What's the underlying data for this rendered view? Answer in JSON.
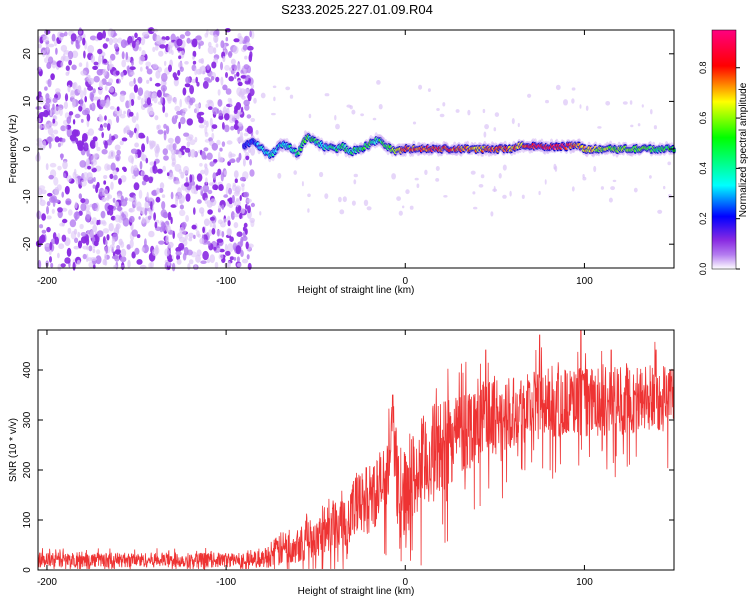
{
  "page": {
    "title": "S233.2025.227.01.09.R04"
  },
  "chart_data": [
    {
      "type": "heatmap",
      "xlabel": "Height of straight line (km)",
      "ylabel": "Frequency (Hz)",
      "xlim": [
        -205,
        150
      ],
      "ylim": [
        -25,
        25
      ],
      "xticks": [
        -200,
        -100,
        0,
        100
      ],
      "xtick_labels": [
        "-200",
        "-100",
        "0",
        "100"
      ],
      "yticks": [
        -20,
        -10,
        0,
        10,
        20
      ],
      "ytick_labels": [
        "-20",
        "-10",
        "0",
        "10",
        "20"
      ],
      "colorbar": {
        "label": "Normalized spectral amplitude",
        "range": [
          0,
          0.95
        ],
        "ticks": [
          0.0,
          0.2,
          0.4,
          0.6,
          0.8
        ],
        "tick_labels": [
          "0.0",
          "0.2",
          "0.4",
          "0.6",
          "0.8"
        ],
        "colormap": [
          "#ffffff",
          "#8a2be2",
          "#0000ff",
          "#00ffff",
          "#00ff00",
          "#ffff00",
          "#ff0000",
          "#ff0080"
        ]
      },
      "noise_region": {
        "x_range": [
          -205,
          -85
        ],
        "freq_range": [
          -25,
          25
        ],
        "amplitude_range": [
          0.0,
          0.08
        ]
      },
      "signal_trace": {
        "x": [
          -90,
          -85,
          -80,
          -75,
          -70,
          -65,
          -60,
          -55,
          -50,
          -45,
          -40,
          -35,
          -30,
          -25,
          -20,
          -15,
          -10,
          -5,
          0,
          10,
          20,
          30,
          40,
          50,
          60,
          65,
          70,
          80,
          90,
          95,
          100,
          110,
          120,
          130,
          140,
          150
        ],
        "freq": [
          0.5,
          1.5,
          0.0,
          -1.5,
          1.0,
          0.5,
          -1.0,
          2.5,
          1.5,
          0.5,
          0.0,
          0.5,
          -0.5,
          0.0,
          1.0,
          2.0,
          0.5,
          -0.5,
          0.0,
          0.0,
          0.0,
          0.0,
          0.0,
          0.0,
          0.0,
          1.0,
          0.5,
          0.5,
          0.5,
          1.0,
          0.0,
          0.0,
          0.0,
          0.0,
          0.0,
          0.0
        ],
        "amplitude": [
          0.25,
          0.3,
          0.4,
          0.45,
          0.4,
          0.45,
          0.5,
          0.55,
          0.5,
          0.45,
          0.5,
          0.55,
          0.5,
          0.5,
          0.55,
          0.5,
          0.6,
          0.7,
          0.8,
          0.8,
          0.85,
          0.8,
          0.75,
          0.8,
          0.8,
          0.75,
          0.9,
          0.9,
          0.9,
          0.8,
          0.75,
          0.65,
          0.6,
          0.6,
          0.55,
          0.55
        ]
      }
    },
    {
      "type": "line",
      "xlabel": "Height of straight line (km)",
      "ylabel": "SNR (10 * v/v)",
      "xlim": [
        -205,
        150
      ],
      "ylim": [
        0,
        480
      ],
      "xticks": [
        -200,
        -100,
        0,
        100
      ],
      "xtick_labels": [
        "-200",
        "-100",
        "0",
        "100"
      ],
      "yticks": [
        0,
        100,
        200,
        300,
        400
      ],
      "ytick_labels": [
        "0",
        "100",
        "200",
        "300",
        "400"
      ],
      "series": [
        {
          "color": "#ee3333",
          "x": [
            -205,
            -180,
            -150,
            -120,
            -100,
            -90,
            -80,
            -75,
            -70,
            -60,
            -50,
            -40,
            -30,
            -20,
            -10,
            -7,
            -5,
            -3,
            0,
            10,
            20,
            30,
            40,
            50,
            60,
            70,
            80,
            90,
            100,
            110,
            120,
            130,
            140,
            150
          ],
          "y_mean": [
            20,
            20,
            20,
            20,
            20,
            20,
            22,
            30,
            40,
            55,
            70,
            90,
            115,
            145,
            180,
            330,
            200,
            120,
            160,
            210,
            250,
            275,
            295,
            310,
            320,
            330,
            335,
            335,
            335,
            335,
            340,
            340,
            345,
            345
          ],
          "y_spread": [
            15,
            15,
            15,
            15,
            15,
            15,
            18,
            25,
            35,
            40,
            45,
            55,
            65,
            70,
            80,
            20,
            80,
            80,
            90,
            100,
            100,
            90,
            85,
            80,
            75,
            75,
            70,
            70,
            70,
            70,
            70,
            70,
            70,
            70
          ],
          "peaks": [
            {
              "x": -7,
              "y": 350
            },
            {
              "x": 45,
              "y": 440
            },
            {
              "x": 75,
              "y": 470
            },
            {
              "x": 98,
              "y": 485
            },
            {
              "x": 115,
              "y": 440
            },
            {
              "x": 140,
              "y": 440
            }
          ]
        }
      ]
    }
  ]
}
